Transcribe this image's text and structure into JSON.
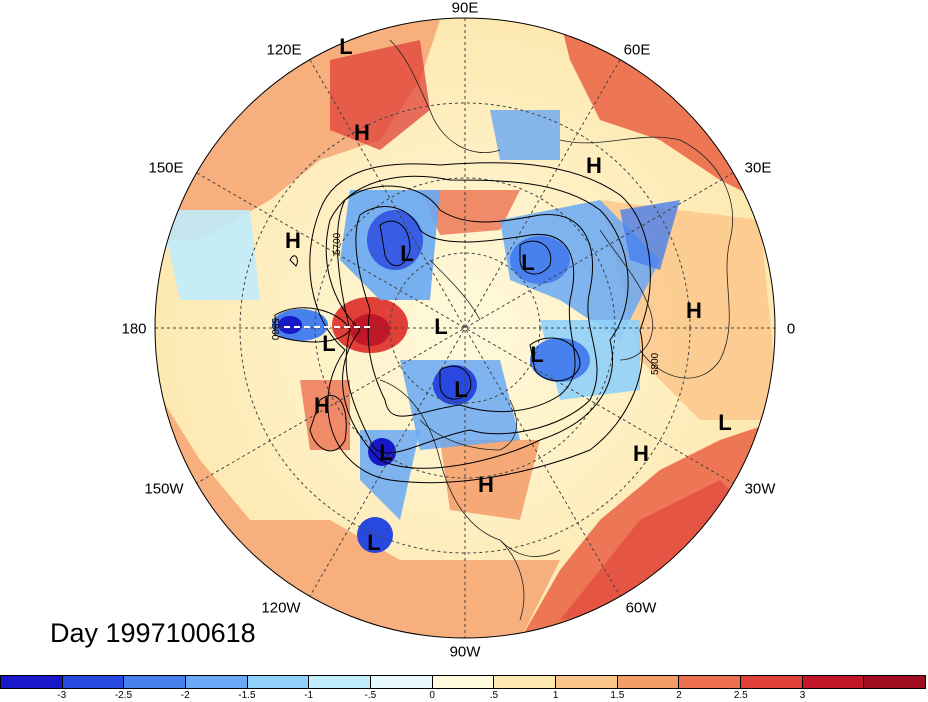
{
  "title": "Day 1997100618",
  "longitude_labels": {
    "e90": "90E",
    "e60": "60E",
    "e30": "30E",
    "zero": "0",
    "w30": "30W",
    "w60": "60W",
    "w90": "90W",
    "w120": "120W",
    "w150": "150W",
    "d180": "180",
    "e150": "150E",
    "e120": "120E"
  },
  "contour_labels": {
    "c5700": "5700",
    "c5800a": "5800",
    "c5800b": "5800"
  },
  "centers": {
    "L": "L",
    "H": "H"
  },
  "colorbar": {
    "colors": [
      "#1818c8",
      "#2848e0",
      "#4880ee",
      "#68a8f4",
      "#90d0fa",
      "#c0ecfc",
      "#e8fafe",
      "#fffadc",
      "#fde8b0",
      "#fbc488",
      "#f49c68",
      "#ec7050",
      "#e04038",
      "#c01828",
      "#a00c20"
    ],
    "ticks": [
      "-3",
      "-2.5",
      "-2",
      "-1.5",
      "-1",
      "-.5",
      "0",
      ".5",
      "1",
      "1.5",
      "2",
      "2.5",
      "3"
    ]
  }
}
